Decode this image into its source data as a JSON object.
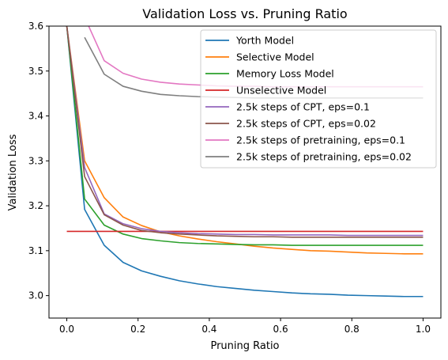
{
  "chart_data": {
    "type": "line",
    "title": "Validation Loss vs. Pruning Ratio",
    "xlabel": "Pruning Ratio",
    "ylabel": "Validation Loss",
    "xlim": [
      -0.05,
      1.05
    ],
    "ylim": [
      2.95,
      3.6
    ],
    "xticks": [
      0.0,
      0.2,
      0.4,
      0.6,
      0.8,
      1.0
    ],
    "xtick_labels": [
      "0.0",
      "0.2",
      "0.4",
      "0.6",
      "0.8",
      "1.0"
    ],
    "yticks": [
      3.0,
      3.1,
      3.2,
      3.3,
      3.4,
      3.5,
      3.6
    ],
    "ytick_labels": [
      "3.0",
      "3.1",
      "3.2",
      "3.3",
      "3.4",
      "3.5",
      "3.6"
    ],
    "grid": false,
    "legend_position": "top-right",
    "series": [
      {
        "name": "Yorth Model",
        "color": "#1f77b4",
        "x": [
          0.0,
          0.05,
          0.105,
          0.158,
          0.21,
          0.263,
          0.316,
          0.368,
          0.421,
          0.474,
          0.526,
          0.579,
          0.632,
          0.684,
          0.737,
          0.789,
          0.842,
          0.895,
          0.947,
          1.0
        ],
        "y": [
          3.6,
          3.192,
          3.112,
          3.074,
          3.055,
          3.043,
          3.033,
          3.026,
          3.02,
          3.016,
          3.012,
          3.009,
          3.006,
          3.004,
          3.003,
          3.001,
          3.0,
          2.999,
          2.998,
          2.998
        ]
      },
      {
        "name": "Selective Model",
        "color": "#ff7f0e",
        "x": [
          0.0,
          0.05,
          0.105,
          0.158,
          0.21,
          0.263,
          0.316,
          0.368,
          0.421,
          0.474,
          0.526,
          0.579,
          0.632,
          0.684,
          0.737,
          0.789,
          0.842,
          0.895,
          0.947,
          1.0
        ],
        "y": [
          3.6,
          3.3,
          3.218,
          3.175,
          3.156,
          3.142,
          3.133,
          3.126,
          3.12,
          3.115,
          3.11,
          3.106,
          3.103,
          3.1,
          3.099,
          3.097,
          3.095,
          3.094,
          3.093,
          3.093
        ]
      },
      {
        "name": "Memory Loss Model",
        "color": "#2ca02c",
        "x": [
          0.0,
          0.05,
          0.105,
          0.158,
          0.21,
          0.263,
          0.316,
          0.368,
          0.421,
          0.474,
          0.526,
          0.579,
          0.632,
          0.684,
          0.737,
          0.789,
          0.842,
          0.895,
          0.947,
          1.0
        ],
        "y": [
          3.6,
          3.215,
          3.157,
          3.137,
          3.127,
          3.122,
          3.118,
          3.116,
          3.115,
          3.114,
          3.113,
          3.113,
          3.112,
          3.112,
          3.112,
          3.112,
          3.112,
          3.112,
          3.112,
          3.112
        ]
      },
      {
        "name": "Unselective Model",
        "color": "#d62728",
        "x": [
          0.0,
          1.0
        ],
        "y": [
          3.143,
          3.143
        ]
      },
      {
        "name": "2.5k steps of CPT, eps=0.1",
        "color": "#9467bd",
        "x": [
          0.0,
          0.05,
          0.105,
          0.158,
          0.21,
          0.263,
          0.316,
          0.368,
          0.421,
          0.474,
          0.526,
          0.579,
          0.632,
          0.684,
          0.737,
          0.789,
          0.842,
          0.895,
          0.947,
          1.0
        ],
        "y": [
          3.6,
          3.285,
          3.182,
          3.16,
          3.149,
          3.143,
          3.14,
          3.138,
          3.137,
          3.136,
          3.136,
          3.135,
          3.135,
          3.135,
          3.135,
          3.134,
          3.134,
          3.134,
          3.134,
          3.134
        ]
      },
      {
        "name": "2.5k steps of CPT, eps=0.02",
        "color": "#8c564b",
        "x": [
          0.0,
          0.05,
          0.105,
          0.158,
          0.21,
          0.263,
          0.316,
          0.368,
          0.421,
          0.474,
          0.526,
          0.579,
          0.632,
          0.684,
          0.737,
          0.789,
          0.842,
          0.895,
          0.947,
          1.0
        ],
        "y": [
          3.6,
          3.265,
          3.18,
          3.157,
          3.145,
          3.14,
          3.137,
          3.135,
          3.133,
          3.132,
          3.131,
          3.131,
          3.13,
          3.13,
          3.13,
          3.13,
          3.13,
          3.13,
          3.13,
          3.13
        ]
      },
      {
        "name": "2.5k steps of pretraining, eps=0.1",
        "color": "#e377c2",
        "x": [
          0.05,
          0.105,
          0.158,
          0.21,
          0.263,
          0.316,
          0.368,
          0.421,
          0.474,
          0.526,
          0.579,
          0.632,
          0.684,
          0.737,
          0.789,
          0.842,
          0.895,
          0.947,
          1.0
        ],
        "y": [
          3.62,
          3.523,
          3.495,
          3.482,
          3.475,
          3.471,
          3.469,
          3.467,
          3.466,
          3.466,
          3.465,
          3.465,
          3.465,
          3.465,
          3.465,
          3.465,
          3.465,
          3.465,
          3.465
        ]
      },
      {
        "name": "2.5k steps of pretraining, eps=0.02",
        "color": "#7f7f7f",
        "x": [
          0.05,
          0.105,
          0.158,
          0.21,
          0.263,
          0.316,
          0.368,
          0.421,
          0.474,
          0.526,
          0.579,
          0.632,
          0.684,
          0.737,
          0.789,
          0.842,
          0.895,
          0.947,
          1.0
        ],
        "y": [
          3.575,
          3.493,
          3.466,
          3.455,
          3.448,
          3.445,
          3.443,
          3.442,
          3.441,
          3.44,
          3.44,
          3.44,
          3.44,
          3.44,
          3.44,
          3.44,
          3.44,
          3.44,
          3.44
        ]
      }
    ]
  }
}
